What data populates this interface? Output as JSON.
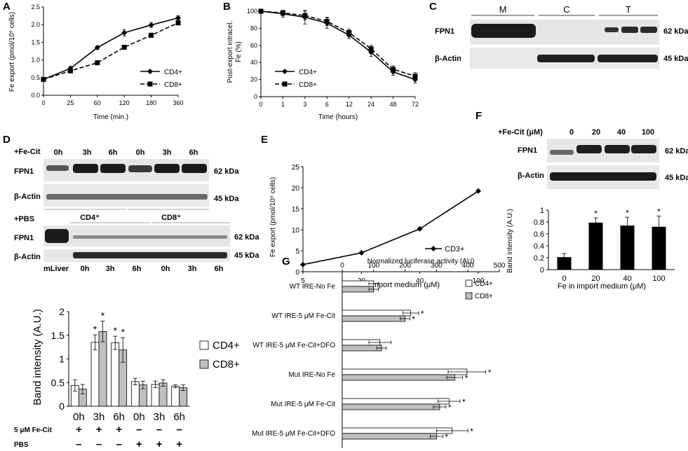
{
  "colors": {
    "ink": "#000000",
    "gray_bar": "#bfbfbf",
    "blot_bg": "#e6e6e6",
    "band": "#1a1a1a"
  },
  "panel_letters": [
    "A",
    "B",
    "C",
    "D",
    "E",
    "F",
    "G"
  ],
  "chart_data": [
    {
      "id": "A",
      "type": "line",
      "x": [
        0,
        25,
        60,
        120,
        180,
        360
      ],
      "xlabel": "Time (min.)",
      "ylabel": "Fe export (pmol/10⁶ cells)",
      "ylim": [
        0,
        2.5
      ],
      "yticks": [
        "0.0",
        "0.5",
        "1.0",
        "1.5",
        "2.0",
        "2.5"
      ],
      "legend_position": "bottom-right",
      "series": [
        {
          "name": "CD4+",
          "marker": "diamond",
          "dash": "solid",
          "values": [
            0.45,
            0.76,
            1.35,
            1.77,
            1.99,
            2.19
          ],
          "errors": [
            0.03,
            0.06,
            0.05,
            0.09,
            0.07,
            0.06
          ]
        },
        {
          "name": "CD8+",
          "marker": "square",
          "dash": "dashed",
          "values": [
            0.45,
            0.69,
            0.92,
            1.36,
            1.7,
            2.05
          ],
          "errors": [
            0.03,
            0.04,
            0.04,
            0.05,
            0.06,
            0.05
          ]
        }
      ]
    },
    {
      "id": "B",
      "type": "line",
      "x": [
        0,
        1,
        3,
        6,
        12,
        24,
        48,
        72
      ],
      "xlabel": "Time (hours)",
      "ylabel_lines": [
        "Post-export intracel.",
        "Fe (%)"
      ],
      "ylim": [
        0,
        100
      ],
      "yticks": [
        "0",
        "20",
        "40",
        "60",
        "80",
        "100"
      ],
      "legend_position": "bottom-left",
      "series": [
        {
          "name": "CD4+",
          "marker": "diamond",
          "dash": "solid",
          "values": [
            100,
            97,
            93,
            86,
            72,
            52,
            29,
            20
          ],
          "errors": [
            2,
            4,
            8,
            6,
            4,
            5,
            4,
            4
          ]
        },
        {
          "name": "CD8+",
          "marker": "square",
          "dash": "dashed",
          "values": [
            100,
            98,
            95,
            88,
            75,
            56,
            32,
            24
          ],
          "errors": [
            2,
            3,
            5,
            5,
            4,
            4,
            4,
            4
          ]
        }
      ]
    },
    {
      "id": "D",
      "type": "bar",
      "categories": [
        "0h",
        "3h",
        "6h",
        "0h",
        "3h",
        "6h"
      ],
      "ylabel": "Band intensity (A.U.)",
      "ylim": [
        0,
        2
      ],
      "yticks": [
        "0",
        "0.5",
        "1",
        "1.5",
        "2"
      ],
      "legend_position": "right",
      "series": [
        {
          "name": "CD4+",
          "fill": "white",
          "values": [
            0.44,
            1.35,
            1.34,
            0.52,
            0.46,
            0.42
          ],
          "errors": [
            0.12,
            0.16,
            0.14,
            0.07,
            0.07,
            0.03
          ],
          "significant": [
            false,
            true,
            true,
            false,
            false,
            false
          ]
        },
        {
          "name": "CD8+",
          "fill": "gray",
          "values": [
            0.36,
            1.58,
            1.19,
            0.45,
            0.49,
            0.39
          ],
          "errors": [
            0.1,
            0.22,
            0.26,
            0.08,
            0.07,
            0.06
          ],
          "significant": [
            false,
            true,
            true,
            false,
            false,
            false
          ]
        }
      ],
      "treatment_rows": [
        {
          "label": "5 μM Fe-Cit",
          "marks": [
            "+",
            "+",
            "+",
            "–",
            "–",
            "–"
          ]
        },
        {
          "label": "PBS",
          "marks": [
            "–",
            "–",
            "–",
            "+",
            "+",
            "+"
          ]
        }
      ]
    },
    {
      "id": "E",
      "type": "line",
      "categories": [
        "5",
        "20",
        "40",
        "100"
      ],
      "values": [
        1.7,
        4.5,
        10.2,
        19.2
      ],
      "errors": [
        0.2,
        0.2,
        0.3,
        0.6
      ],
      "xlabel": "Fe in import medium (μM)",
      "ylabel": "Fe export (pmol/10⁶ cells)",
      "ylim": [
        0,
        25
      ],
      "yticks": [
        "0",
        "5",
        "10",
        "15",
        "20",
        "25"
      ],
      "series_name": "CD3+",
      "legend_position": "bottom-right"
    },
    {
      "id": "F",
      "type": "bar",
      "categories": [
        "0",
        "20",
        "40",
        "100"
      ],
      "values": [
        0.21,
        0.79,
        0.74,
        0.72
      ],
      "errors": [
        0.06,
        0.08,
        0.14,
        0.18
      ],
      "significant": [
        false,
        true,
        true,
        true
      ],
      "xlabel": "Fe in import medium (μM)",
      "ylabel": "Band intensity (A.U.)",
      "ylim": [
        0,
        1
      ],
      "yticks": [
        "0",
        "0.2",
        "0.4",
        "0.6",
        "0.8",
        "1"
      ]
    },
    {
      "id": "G",
      "type": "bar",
      "orientation": "horizontal",
      "title": "Normalized luciferase activity (AU)",
      "categories": [
        "WT IRE-No Fe",
        "WT IRE-5 μM Fe-Cit",
        "WT IRE-5 μM Fe-Cit+DFO",
        "Mut IRE-No Fe",
        "Mut IRE-5 μM Fe-Cit",
        "Mut IRE-5 μM Fe-Cit+DFO"
      ],
      "xlim": [
        0,
        500
      ],
      "xticks": [
        "0",
        "100",
        "200",
        "300",
        "400",
        "500"
      ],
      "legend_position": "right",
      "series": [
        {
          "name": "CD4+",
          "fill": "white",
          "values": [
            100,
            218,
            120,
            397,
            340,
            350
          ],
          "errors": [
            15,
            25,
            35,
            60,
            35,
            50
          ],
          "significant": [
            false,
            true,
            false,
            true,
            true,
            true
          ]
        },
        {
          "name": "CD8+",
          "fill": "gray",
          "values": [
            100,
            200,
            125,
            358,
            310,
            300
          ],
          "errors": [
            15,
            15,
            15,
            25,
            20,
            20
          ],
          "significant": [
            false,
            true,
            false,
            true,
            true,
            true
          ]
        }
      ]
    }
  ],
  "blots": {
    "C": {
      "groups": [
        "M",
        "C",
        "T"
      ],
      "rows": [
        "FPN1",
        "β-Actin"
      ],
      "sizes": [
        "62 kDa",
        "45 kDa"
      ]
    },
    "D": {
      "treatment_top": "+Fe-Cit",
      "treatment_bottom": "+PBS",
      "lanes_top": [
        "0h",
        "3h",
        "6h",
        "0h",
        "3h",
        "6h"
      ],
      "lanes_bottom": [
        "mLiver",
        "0h",
        "3h",
        "6h",
        "0h",
        "3h",
        "6h"
      ],
      "rows": [
        "FPN1",
        "β-Actin"
      ],
      "sizes": [
        "62 kDa",
        "45 kDa"
      ],
      "cell_groups": [
        "CD4⁺",
        "CD8⁺"
      ]
    },
    "F": {
      "treatment": "+Fe-Cit (μM)",
      "lanes": [
        "0",
        "20",
        "40",
        "100"
      ],
      "rows": [
        "FPN1",
        "β-Actin"
      ],
      "sizes": [
        "62 kDa",
        "45 kDa"
      ]
    }
  }
}
